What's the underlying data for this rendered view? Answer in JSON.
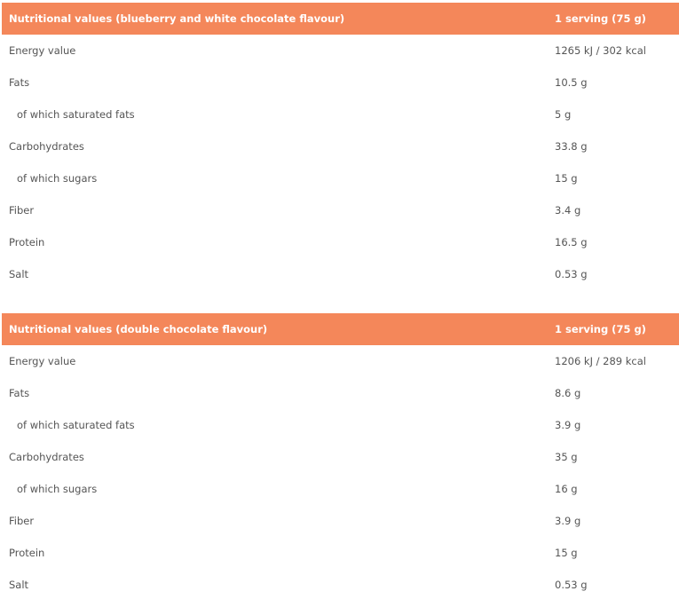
{
  "accent_color": "#f4875a",
  "tables": [
    {
      "header": {
        "name": "Nutritional values (blueberry and white chocolate flavour)",
        "serving": "1 serving (75 g)"
      },
      "rows": [
        {
          "label": "Energy value",
          "value": "1265 kJ / 302 kcal",
          "sub": false
        },
        {
          "label": "Fats",
          "value": "10.5 g",
          "sub": false
        },
        {
          "label": "of which saturated fats",
          "value": "5 g",
          "sub": true
        },
        {
          "label": "Carbohydrates",
          "value": "33.8 g",
          "sub": false
        },
        {
          "label": "of which sugars",
          "value": "15 g",
          "sub": true
        },
        {
          "label": "Fiber",
          "value": "3.4 g",
          "sub": false
        },
        {
          "label": "Protein",
          "value": "16.5 g",
          "sub": false
        },
        {
          "label": "Salt",
          "value": "0.53 g",
          "sub": false
        }
      ]
    },
    {
      "header": {
        "name": "Nutritional values (double chocolate flavour)",
        "serving": "1 serving (75 g)"
      },
      "rows": [
        {
          "label": "Energy value",
          "value": "1206 kJ / 289 kcal",
          "sub": false
        },
        {
          "label": "Fats",
          "value": "8.6 g",
          "sub": false
        },
        {
          "label": "of which saturated fats",
          "value": "3.9 g",
          "sub": true
        },
        {
          "label": "Carbohydrates",
          "value": "35 g",
          "sub": false
        },
        {
          "label": "of which sugars",
          "value": "16 g",
          "sub": true
        },
        {
          "label": "Fiber",
          "value": "3.9 g",
          "sub": false
        },
        {
          "label": "Protein",
          "value": "15 g",
          "sub": false
        },
        {
          "label": "Salt",
          "value": "0.53 g",
          "sub": false
        }
      ]
    }
  ]
}
